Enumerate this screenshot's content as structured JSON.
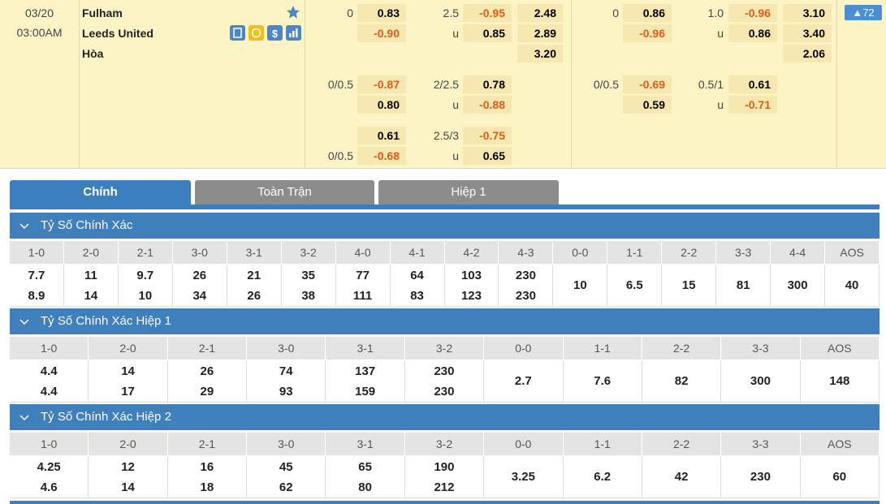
{
  "match": {
    "date": "03/20",
    "time": "03:00AM",
    "teams": [
      "Fulham",
      "Leeds United",
      "Hòa"
    ],
    "more": "72"
  },
  "odds_blocks": [
    {
      "rows": [
        [
          "0",
          "0.83",
          "2.5",
          "-0.95",
          "2.48"
        ],
        [
          null,
          "-0.90",
          "u",
          "0.85",
          "2.89"
        ],
        [
          null,
          null,
          null,
          null,
          "3.20"
        ],
        [
          "0/0.5",
          "-0.87",
          "2/2.5",
          "0.78",
          null
        ],
        [
          null,
          "0.80",
          "u",
          "-0.88",
          null
        ],
        [
          null,
          "0.61",
          "2.5/3",
          "-0.75",
          null
        ],
        [
          "0/0.5",
          "-0.68",
          "u",
          "0.65",
          null
        ]
      ]
    },
    {
      "rows": [
        [
          "0",
          "0.86",
          "1.0",
          "-0.96",
          "3.10"
        ],
        [
          null,
          "-0.96",
          "u",
          "0.86",
          "3.40"
        ],
        [
          null,
          null,
          null,
          null,
          "2.06"
        ],
        [
          "0/0.5",
          "-0.69",
          "0.5/1",
          "0.61",
          null
        ],
        [
          null,
          "0.59",
          "u",
          "-0.71",
          null
        ]
      ]
    }
  ],
  "tabs": [
    "Chính",
    "Toàn Trận",
    "Hiệp 1"
  ],
  "sections": [
    {
      "title": "Tỷ Số Chính Xác",
      "columns": [
        {
          "label": "1-0",
          "values": [
            "7.7",
            "8.9"
          ]
        },
        {
          "label": "2-0",
          "values": [
            "11",
            "14"
          ]
        },
        {
          "label": "2-1",
          "values": [
            "9.7",
            "10"
          ]
        },
        {
          "label": "3-0",
          "values": [
            "26",
            "34"
          ]
        },
        {
          "label": "3-1",
          "values": [
            "21",
            "26"
          ]
        },
        {
          "label": "3-2",
          "values": [
            "35",
            "38"
          ]
        },
        {
          "label": "4-0",
          "values": [
            "77",
            "111"
          ]
        },
        {
          "label": "4-1",
          "values": [
            "64",
            "83"
          ]
        },
        {
          "label": "4-2",
          "values": [
            "103",
            "123"
          ]
        },
        {
          "label": "4-3",
          "values": [
            "230",
            "230"
          ]
        },
        {
          "label": "0-0",
          "values": [
            "10"
          ]
        },
        {
          "label": "1-1",
          "values": [
            "6.5"
          ]
        },
        {
          "label": "2-2",
          "values": [
            "15"
          ]
        },
        {
          "label": "3-3",
          "values": [
            "81"
          ]
        },
        {
          "label": "4-4",
          "values": [
            "300"
          ]
        },
        {
          "label": "AOS",
          "values": [
            "40"
          ]
        }
      ]
    },
    {
      "title": "Tỷ Số Chính Xác Hiệp 1",
      "columns": [
        {
          "label": "1-0",
          "values": [
            "4.4",
            "4.4"
          ]
        },
        {
          "label": "2-0",
          "values": [
            "14",
            "17"
          ]
        },
        {
          "label": "2-1",
          "values": [
            "26",
            "29"
          ]
        },
        {
          "label": "3-0",
          "values": [
            "74",
            "93"
          ]
        },
        {
          "label": "3-1",
          "values": [
            "137",
            "159"
          ]
        },
        {
          "label": "3-2",
          "values": [
            "230",
            "230"
          ]
        },
        {
          "label": "0-0",
          "values": [
            "2.7"
          ]
        },
        {
          "label": "1-1",
          "values": [
            "7.6"
          ]
        },
        {
          "label": "2-2",
          "values": [
            "82"
          ]
        },
        {
          "label": "3-3",
          "values": [
            "300"
          ]
        },
        {
          "label": "AOS",
          "values": [
            "148"
          ]
        }
      ]
    },
    {
      "title": "Tỷ Số Chính Xác Hiệp 2",
      "columns": [
        {
          "label": "1-0",
          "values": [
            "4.25",
            "4.6"
          ]
        },
        {
          "label": "2-0",
          "values": [
            "12",
            "14"
          ]
        },
        {
          "label": "2-1",
          "values": [
            "16",
            "18"
          ]
        },
        {
          "label": "3-0",
          "values": [
            "45",
            "62"
          ]
        },
        {
          "label": "3-1",
          "values": [
            "65",
            "80"
          ]
        },
        {
          "label": "3-2",
          "values": [
            "190",
            "212"
          ]
        },
        {
          "label": "0-0",
          "values": [
            "3.25"
          ]
        },
        {
          "label": "1-1",
          "values": [
            "6.2"
          ]
        },
        {
          "label": "2-2",
          "values": [
            "42"
          ]
        },
        {
          "label": "3-3",
          "values": [
            "230"
          ]
        },
        {
          "label": "AOS",
          "values": [
            "60"
          ]
        }
      ]
    }
  ]
}
